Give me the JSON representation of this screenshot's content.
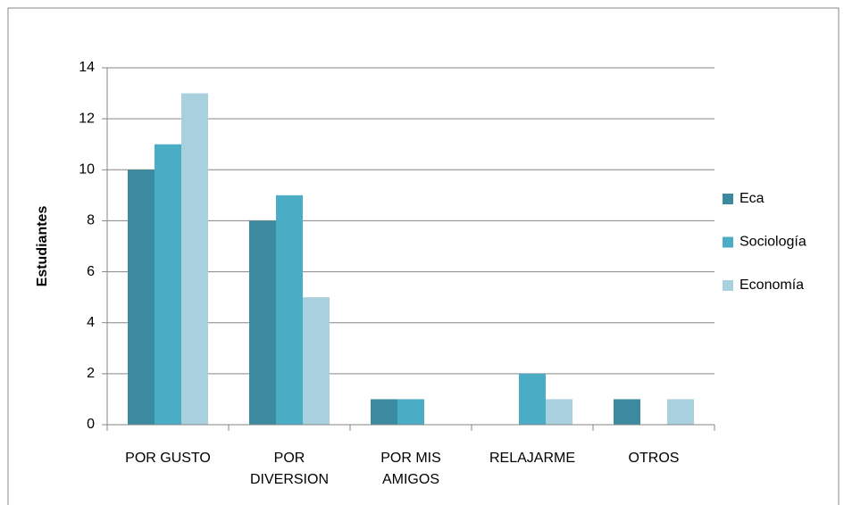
{
  "chart_data": {
    "type": "bar",
    "y_label": "Estudiantes",
    "categories": [
      "POR GUSTO",
      "POR DIVERSION",
      "POR MIS AMIGOS",
      "RELAJARME",
      "OTROS"
    ],
    "series": [
      {
        "name": "Eca",
        "color": "#3b8aa0",
        "values": [
          10,
          8,
          1,
          0,
          1
        ]
      },
      {
        "name": "Sociología",
        "color": "#4bacc6",
        "values": [
          11,
          9,
          1,
          2,
          0
        ]
      },
      {
        "name": "Economía",
        "color": "#a8d0dd",
        "values": [
          13,
          5,
          0,
          1,
          1
        ]
      }
    ],
    "ylim": [
      0,
      14
    ],
    "yticks": [
      0,
      2,
      4,
      6,
      8,
      10,
      12,
      14
    ],
    "grid": true,
    "legend": "right"
  }
}
